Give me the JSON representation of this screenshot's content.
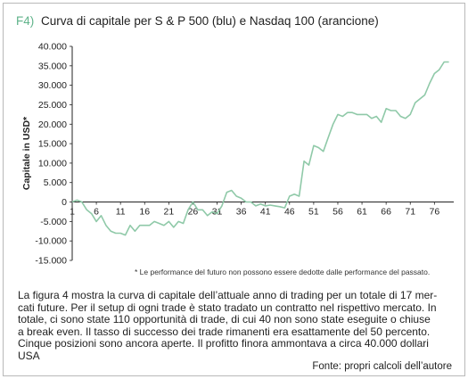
{
  "figure": {
    "label": "F4)",
    "title": "Curva di capitale per S & P 500 (blu) e Nasdaq 100 (arancione)",
    "accent_color": "#5fb38a"
  },
  "chart_data": {
    "type": "line",
    "ylabel": "Capitale in USD*",
    "ylim": [
      -15000,
      40000
    ],
    "y_ticks": [
      40000,
      35000,
      30000,
      25000,
      20000,
      15000,
      10000,
      5000,
      0,
      -5000,
      -10000,
      -15000
    ],
    "y_tick_labels": [
      "40.000",
      "35.000",
      "30.000",
      "25.000",
      "20.000",
      "15.000",
      "10.000",
      "5.000",
      "0",
      "-5.000",
      "-10.000",
      "-15.000"
    ],
    "xlim": [
      1,
      80
    ],
    "x_ticks": [
      1,
      6,
      11,
      16,
      21,
      26,
      31,
      36,
      41,
      46,
      51,
      56,
      61,
      66,
      71,
      76
    ],
    "x_tick_labels": [
      "1",
      "6",
      "11",
      "16",
      "21",
      "26",
      "31",
      "36",
      "41",
      "46",
      "51",
      "56",
      "61",
      "66",
      "71",
      "76"
    ],
    "grid": false,
    "line_color": "#8fc9a8",
    "series": [
      {
        "x": [
          1,
          2,
          3,
          4,
          5,
          6,
          7,
          8,
          9,
          10,
          11,
          12,
          13,
          14,
          15,
          16,
          17,
          18,
          19,
          20,
          21,
          22,
          23,
          24,
          25,
          26,
          27,
          28,
          29,
          30,
          31,
          32,
          33,
          34,
          35,
          36,
          37,
          38,
          39,
          40,
          41,
          42,
          43,
          44,
          45,
          46,
          47,
          48,
          49,
          50,
          51,
          52,
          53,
          54,
          55,
          56,
          57,
          58,
          59,
          60,
          61,
          62,
          63,
          64,
          65,
          66,
          67,
          68,
          69,
          70,
          71,
          72,
          73,
          74,
          75,
          76,
          77,
          78,
          79
        ],
        "values": [
          0,
          500,
          0,
          -2000,
          -3000,
          -5000,
          -3500,
          -6000,
          -7500,
          -8000,
          -8000,
          -8500,
          -6000,
          -7500,
          -6000,
          -6000,
          -6000,
          -5000,
          -5500,
          -6000,
          -5000,
          -6500,
          -5000,
          -5500,
          -2000,
          0,
          -2000,
          -2000,
          -3500,
          -2500,
          -3000,
          -1000,
          2500,
          3000,
          1500,
          1000,
          0,
          0,
          -1000,
          -500,
          -1000,
          -800,
          -1000,
          -1200,
          -1500,
          1500,
          2000,
          1500,
          10500,
          9500,
          14500,
          14000,
          13000,
          16500,
          20000,
          22500,
          22000,
          23000,
          23000,
          22500,
          22500,
          22500,
          21500,
          22000,
          20500,
          24000,
          23500,
          23500,
          22000,
          21500,
          22500,
          25500,
          26500,
          27500,
          30500,
          33000,
          34000,
          36000,
          36000
        ]
      }
    ]
  },
  "footnote": "* Le performance del futuro non possono essere dedotte dalle performance del passato.",
  "body_lines": [
    "La figura 4 mostra la curva di capitale dell’attuale anno di trading per un totale di 17 mer-",
    "cati future. Per il setup di ogni trade è stato tradato un contratto nel rispettivo mercato. In",
    "totale, ci sono state 110 opportunità di trade, di cui 40 non sono state eseguite o chiuse",
    "a break even. Il tasso di successo dei trade rimanenti era esattamente del 50 percento.",
    "Cinque posizioni sono ancora aperte. Il profitto finora ammontava a circa 40.000 dollari",
    "USA"
  ],
  "source": "Fonte: propri calcoli dell’autore"
}
